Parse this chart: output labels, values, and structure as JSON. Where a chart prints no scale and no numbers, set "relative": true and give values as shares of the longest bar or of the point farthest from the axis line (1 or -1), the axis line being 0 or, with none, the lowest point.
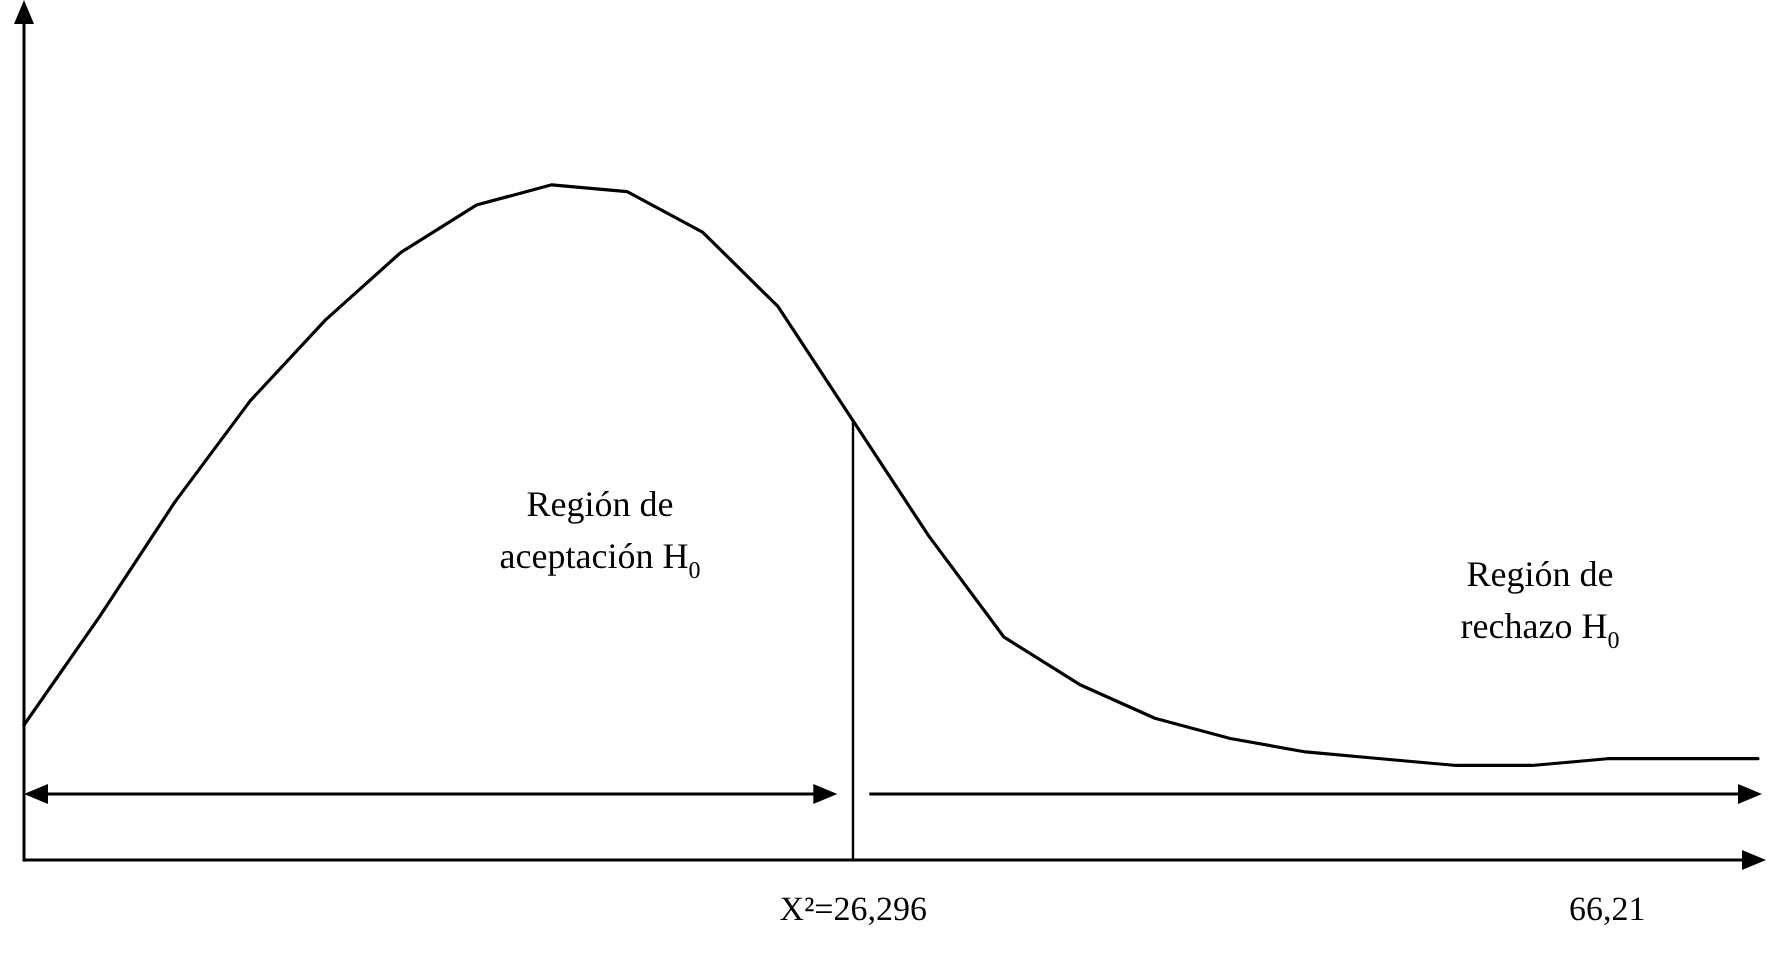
{
  "chart_data": {
    "type": "line",
    "relative": true,
    "color": "#000000",
    "marker": "none",
    "grid": false,
    "categories": [
      null,
      null,
      null,
      null,
      null,
      null,
      null,
      null,
      null,
      null,
      null,
      "X²=26,296",
      null,
      null,
      null,
      null,
      null,
      null,
      null,
      null,
      null,
      "66,21",
      null,
      null
    ],
    "values": [
      0.2,
      0.36,
      0.53,
      0.68,
      0.8,
      0.9,
      0.97,
      1.0,
      0.99,
      0.93,
      0.82,
      0.65,
      0.48,
      0.33,
      0.26,
      0.21,
      0.18,
      0.16,
      0.15,
      0.14,
      0.14,
      0.15,
      0.15,
      0.15
    ],
    "ref_lines": [
      {
        "axis": "x",
        "value": "X²=26,296"
      }
    ],
    "annotations": [
      "Región de\naceptación H$_{0}$",
      "Región de\nrechazo H$_{0}$"
    ]
  }
}
